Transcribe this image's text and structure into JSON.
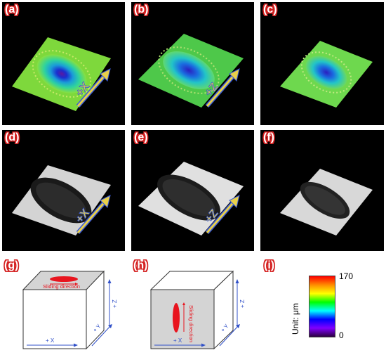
{
  "panels": {
    "a": {
      "label": "(a)",
      "axis": "+X"
    },
    "b": {
      "label": "(b)",
      "axis": "+Z"
    },
    "c": {
      "label": "(c)"
    },
    "d": {
      "label": "(d)",
      "axis": "+X"
    },
    "e": {
      "label": "(e)",
      "axis": "+Z"
    },
    "f": {
      "label": "(f)"
    }
  },
  "diagrams": {
    "g": {
      "label": "(g)",
      "sliding": "Sliding direction",
      "x": "+ X",
      "y": "+ Y",
      "z": "+ Z"
    },
    "h": {
      "label": "(h)",
      "sliding": "Sliding direction",
      "x": "+ X",
      "y": "+ Y",
      "z": "+ Z"
    }
  },
  "colorbar": {
    "label": "(i)",
    "unit": "Unit: μm",
    "max": "170",
    "min": "0",
    "colors": [
      "#ff0000",
      "#ff8c00",
      "#ffff00",
      "#00ff00",
      "#00ffff",
      "#0000ff",
      "#8000ff",
      "#2a0040"
    ]
  }
}
